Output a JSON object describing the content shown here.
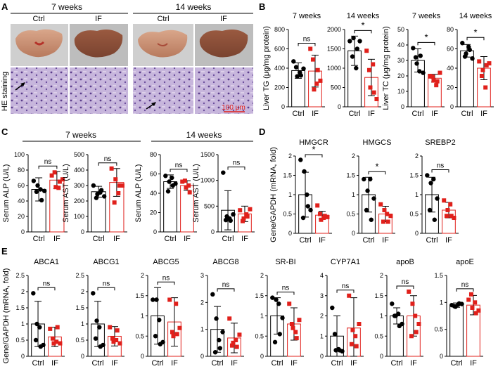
{
  "panels": {
    "A": {
      "letter": "A",
      "groups": [
        "7 weeks",
        "14 weeks"
      ],
      "conditions": [
        "Ctrl",
        "IF",
        "Ctrl",
        "IF"
      ],
      "row_label": "HE staining",
      "scale_bar": "100 μm"
    },
    "B": {
      "letter": "B"
    },
    "C": {
      "letter": "C",
      "groups": [
        "7 weeks",
        "14 weeks"
      ]
    },
    "D": {
      "letter": "D"
    },
    "E": {
      "letter": "E"
    }
  },
  "colors": {
    "ctrl": "#000000",
    "if": "#e0201b"
  },
  "chart_data": [
    {
      "id": "B1",
      "type": "bar",
      "title": "7 weeks",
      "ylabel": "Liver TG (μg/mg protein)",
      "categories": [
        "Ctrl",
        "IF"
      ],
      "ylim": [
        0,
        800
      ],
      "yticks": [
        0,
        200,
        400,
        600,
        800
      ],
      "values": [
        375,
        370
      ],
      "errors": [
        80,
        165
      ],
      "points": [
        [
          470,
          315,
          325,
          410,
          355,
          395
        ],
        [
          600,
          180,
          380,
          490,
          240,
          270
        ]
      ],
      "annotation": "ns"
    },
    {
      "id": "B2",
      "type": "bar",
      "title": "14 weeks",
      "ylabel": "",
      "categories": [
        "Ctrl",
        "IF"
      ],
      "ylim": [
        0,
        2000
      ],
      "yticks": [
        0,
        500,
        1000,
        1500,
        2000
      ],
      "values": [
        1450,
        760
      ],
      "errors": [
        380,
        470
      ],
      "points": [
        [
          1700,
          1780,
          1500,
          1300,
          1000,
          1700
        ],
        [
          1450,
          500,
          370,
          950,
          1100,
          200
        ]
      ],
      "annotation": "*"
    },
    {
      "id": "B3",
      "type": "bar",
      "title": "7 weeks",
      "ylabel": "Liver TC (μg/mg protein)",
      "categories": [
        "Ctrl",
        "IF"
      ],
      "ylim": [
        0,
        50
      ],
      "yticks": [
        0,
        10,
        20,
        30,
        40,
        50
      ],
      "values": [
        30,
        18.5
      ],
      "errors": [
        7.5,
        2.5
      ],
      "points": [
        [
          38,
          28,
          33,
          32,
          23,
          22
        ],
        [
          20,
          17,
          16.5,
          19.5,
          14,
          22
        ]
      ],
      "annotation": "*"
    },
    {
      "id": "B4",
      "type": "bar",
      "title": "14 weeks",
      "ylabel": "",
      "categories": [
        "Ctrl",
        "IF"
      ],
      "ylim": [
        0,
        80
      ],
      "yticks": [
        0,
        20,
        40,
        60,
        80
      ],
      "values": [
        58,
        40
      ],
      "errors": [
        6.5,
        12
      ],
      "points": [
        [
          66,
          55,
          59,
          52,
          62,
          50
        ],
        [
          47,
          38,
          43,
          32,
          20,
          45
        ]
      ],
      "annotation": "*"
    },
    {
      "id": "C1",
      "type": "bar",
      "title": "",
      "ylabel": "Serum ALP (U/L)",
      "categories": [
        "Ctrl",
        "IF"
      ],
      "ylim": [
        0,
        100
      ],
      "yticks": [
        0,
        20,
        40,
        60,
        80,
        100
      ],
      "values": [
        55,
        67
      ],
      "errors": [
        15,
        11
      ],
      "points": [
        [
          66,
          60,
          41,
          52,
          55,
          53
        ],
        [
          73,
          58,
          65,
          77,
          57,
          68
        ]
      ],
      "annotation": "ns"
    },
    {
      "id": "C2",
      "type": "bar",
      "title": "",
      "ylabel": "Serum AST (U/L)",
      "categories": [
        "Ctrl",
        "IF"
      ],
      "ylim": [
        0,
        500
      ],
      "yticks": [
        0,
        100,
        200,
        300,
        400,
        500
      ],
      "values": [
        260,
        320
      ],
      "errors": [
        35,
        90
      ],
      "points": [
        [
          300,
          245,
          270,
          220,
          255,
          230
        ],
        [
          410,
          340,
          300,
          190,
          250,
          300
        ]
      ],
      "annotation": "ns"
    },
    {
      "id": "C3",
      "type": "bar",
      "title": "",
      "ylabel": "Serum ALP (U/L)",
      "categories": [
        "Ctrl",
        "IF"
      ],
      "ylim": [
        0,
        80
      ],
      "yticks": [
        0,
        20,
        40,
        60,
        80
      ],
      "values": [
        52,
        48
      ],
      "errors": [
        7,
        5
      ],
      "points": [
        [
          58,
          52,
          48,
          42,
          56,
          50
        ],
        [
          52,
          46,
          41,
          53,
          48
        ]
      ],
      "annotation": "ns"
    },
    {
      "id": "C4",
      "type": "bar",
      "title": "",
      "ylabel": "Serum AST (U/L)",
      "categories": [
        "Ctrl",
        "IF"
      ],
      "ylim": [
        0,
        1500
      ],
      "yticks": [
        0,
        500,
        1000,
        1500
      ],
      "values": [
        420,
        350
      ],
      "errors": [
        380,
        150
      ],
      "points": [
        [
          1150,
          300,
          220,
          230,
          260,
          340
        ],
        [
          420,
          260,
          300,
          210,
          340,
          440
        ]
      ],
      "annotation": "ns"
    },
    {
      "id": "D1",
      "type": "bar",
      "title": "HMGCR",
      "ylabel": "Gene/GAPDH (mRNA, fold)",
      "categories": [
        "Ctrl",
        "IF"
      ],
      "ylim": [
        0,
        2.0
      ],
      "yticks": [
        0,
        0.5,
        1.0,
        1.5,
        2.0
      ],
      "values": [
        1.0,
        0.47
      ],
      "errors": [
        0.58,
        0.1
      ],
      "points": [
        [
          1.9,
          1.6,
          0.7,
          0.4,
          1.0,
          0.6
        ],
        [
          0.72,
          0.35,
          0.45,
          0.5,
          0.4,
          0.42
        ]
      ],
      "annotation": "*"
    },
    {
      "id": "D2",
      "type": "bar",
      "title": "HMGCS",
      "ylabel": "",
      "categories": [
        "Ctrl",
        "IF"
      ],
      "ylim": [
        0,
        2.0
      ],
      "yticks": [
        0,
        0.5,
        1.0,
        1.5,
        2.0
      ],
      "values": [
        1.0,
        0.5
      ],
      "errors": [
        0.45,
        0.2
      ],
      "points": [
        [
          1.4,
          1.1,
          0.35,
          0.6,
          1.4,
          0.9
        ],
        [
          0.75,
          0.6,
          0.3,
          0.3,
          0.5,
          0.45
        ]
      ],
      "annotation": "*"
    },
    {
      "id": "D3",
      "type": "bar",
      "title": "SREBP2",
      "ylabel": "",
      "categories": [
        "Ctrl",
        "IF"
      ],
      "ylim": [
        0,
        2.0
      ],
      "yticks": [
        0,
        0.5,
        1.0,
        1.5,
        2.0
      ],
      "values": [
        1.0,
        0.6
      ],
      "errors": [
        0.45,
        0.2
      ],
      "points": [
        [
          1.5,
          1.3,
          0.35,
          0.6,
          1.4,
          0.9
        ],
        [
          0.85,
          0.6,
          0.45,
          0.45,
          0.75,
          0.4
        ]
      ],
      "annotation": "ns"
    },
    {
      "id": "E1",
      "type": "bar",
      "title": "ABCA1",
      "ylabel": "Gene/GAPDH (mRNA, fold)",
      "categories": [
        "Ctrl",
        "IF"
      ],
      "ylim": [
        0,
        2.5
      ],
      "yticks": [
        0,
        0.5,
        1.0,
        1.5,
        2.0,
        2.5
      ],
      "values": [
        1.0,
        0.6
      ],
      "errors": [
        0.7,
        0.3
      ],
      "points": [
        [
          1.95,
          1.0,
          0.3,
          0.5,
          0.9,
          0.35
        ],
        [
          0.85,
          0.4,
          0.9,
          0.55,
          0.45,
          0.4
        ]
      ],
      "annotation": "ns"
    },
    {
      "id": "E2",
      "type": "bar",
      "title": "ABCG1",
      "ylabel": "",
      "categories": [
        "Ctrl",
        "IF"
      ],
      "ylim": [
        0,
        2.5
      ],
      "yticks": [
        0,
        0.5,
        1.0,
        1.5,
        2.0,
        2.5
      ],
      "values": [
        1.0,
        0.62
      ],
      "errors": [
        0.7,
        0.3
      ],
      "points": [
        [
          1.95,
          1.1,
          0.3,
          0.55,
          0.9,
          0.35
        ],
        [
          0.9,
          0.45,
          0.8,
          0.55,
          0.5,
          0.4
        ]
      ],
      "annotation": "ns"
    },
    {
      "id": "E3",
      "type": "bar",
      "title": "ABCG5",
      "ylabel": "",
      "categories": [
        "Ctrl",
        "IF"
      ],
      "ylim": [
        0,
        2.0
      ],
      "yticks": [
        0,
        0.5,
        1.0,
        1.5,
        2.0
      ],
      "values": [
        1.0,
        0.85
      ],
      "errors": [
        0.7,
        0.6
      ],
      "points": [
        [
          1.4,
          1.4,
          0.3,
          0.5,
          0.9,
          0.35
        ],
        [
          1.4,
          0.5,
          0.55,
          0.6,
          1.3,
          0.7
        ]
      ],
      "annotation": "ns"
    },
    {
      "id": "E4",
      "type": "bar",
      "title": "ABCG8",
      "ylabel": "",
      "categories": [
        "Ctrl",
        "IF"
      ],
      "ylim": [
        0,
        3
      ],
      "yticks": [
        0,
        1,
        2,
        3
      ],
      "values": [
        1.0,
        0.68
      ],
      "errors": [
        0.85,
        0.55
      ],
      "points": [
        [
          2.3,
          1.4,
          0.3,
          0.15,
          0.6,
          0.9
        ],
        [
          1.4,
          0.5,
          0.35,
          0.4,
          0.6,
          0.8
        ]
      ],
      "annotation": "ns"
    },
    {
      "id": "E5",
      "type": "bar",
      "title": "SR-BI",
      "ylabel": "",
      "categories": [
        "Ctrl",
        "IF"
      ],
      "ylim": [
        0,
        2.0
      ],
      "yticks": [
        0,
        0.5,
        1.0,
        1.5,
        2.0
      ],
      "values": [
        1.0,
        0.8
      ],
      "errors": [
        0.45,
        0.4
      ],
      "points": [
        [
          1.45,
          1.4,
          0.55,
          0.35,
          1.3,
          0.95
        ],
        [
          1.3,
          0.7,
          0.45,
          0.8,
          0.6,
          0.9
        ]
      ],
      "annotation": "ns"
    },
    {
      "id": "E6",
      "type": "bar",
      "title": "CYP7A1",
      "ylabel": "",
      "categories": [
        "Ctrl",
        "IF"
      ],
      "ylim": [
        0,
        4
      ],
      "yticks": [
        0,
        1,
        2,
        3,
        4
      ],
      "values": [
        1.0,
        1.4
      ],
      "errors": [
        1.0,
        1.5
      ],
      "points": [
        [
          2.4,
          0.3,
          0.3,
          1.1,
          0.35,
          0.25
        ],
        [
          3.0,
          1.3,
          0.5,
          0.6,
          1.0,
          1.6
        ]
      ],
      "annotation": "ns"
    },
    {
      "id": "E7",
      "type": "bar",
      "title": "apoB",
      "ylabel": "",
      "categories": [
        "Ctrl",
        "IF"
      ],
      "ylim": [
        0,
        2.0
      ],
      "yticks": [
        0,
        0.5,
        1.0,
        1.5,
        2.0
      ],
      "values": [
        1.0,
        1.0
      ],
      "errors": [
        0.2,
        0.5
      ],
      "points": [
        [
          1.3,
          1.0,
          0.75,
          1.0,
          1.05,
          0.8
        ],
        [
          1.6,
          1.3,
          0.6,
          0.5,
          1.0,
          0.8
        ]
      ],
      "annotation": "ns"
    },
    {
      "id": "E8",
      "type": "bar",
      "title": "apoE",
      "ylabel": "",
      "categories": [
        "Ctrl",
        "IF"
      ],
      "ylim": [
        0,
        1.5
      ],
      "yticks": [
        0,
        0.5,
        1.0,
        1.5
      ],
      "values": [
        0.95,
        0.95
      ],
      "errors": [
        0.04,
        0.18
      ],
      "points": [
        [
          0.95,
          0.92,
          0.98,
          0.93,
          0.96,
          0.97
        ],
        [
          1.05,
          0.9,
          0.8,
          1.15,
          1.0,
          0.85
        ]
      ],
      "annotation": "ns"
    }
  ]
}
